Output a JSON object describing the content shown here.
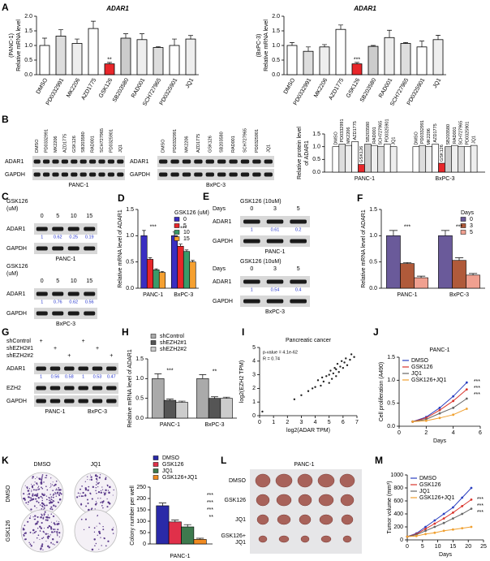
{
  "chart_data": [
    {
      "label": "A",
      "type": "bar",
      "title": "ADAR1",
      "y_label": [
        "(PANC-1)",
        "Relative mRNA level"
      ],
      "categories": [
        "DMSO",
        "PD0332991",
        "MK2206",
        "AZD1775",
        "GSK126",
        "SB203580",
        "RAD001",
        "SCH727965",
        "PD0325901",
        "JQ1"
      ],
      "values": [
        1.0,
        1.32,
        1.07,
        1.58,
        0.37,
        1.25,
        1.2,
        0.93,
        1.0,
        1.22
      ],
      "errors": [
        0.25,
        0.22,
        0.15,
        0.25,
        0.05,
        0.15,
        0.2,
        0.03,
        0.22,
        0.12
      ],
      "colors": [
        "#ffffff",
        "#dddddd",
        "#eeeeee",
        "#ffffff",
        "#e8262a",
        "#cccccc",
        "#eeeeee",
        "#dddddd",
        "#ffffff",
        "#eeeeee"
      ],
      "ylim": [
        0,
        2
      ],
      "yticks": [
        {
          "value": 0,
          "label": "0.0"
        },
        0.5,
        {
          "value": 1,
          "label": "1.0"
        },
        1.5,
        {
          "value": 2,
          "label": "2.0"
        }
      ],
      "annotations": [
        {
          "text": "**",
          "category": "GSK126"
        }
      ]
    },
    {
      "type": "bar",
      "title": "ADAR1",
      "y_label": [
        "(BxPC-3)",
        "Relative mRNA level"
      ],
      "categories": [
        "DMSO",
        "PD0332991",
        "MK2206",
        "AZD1775",
        "GSK126",
        "SB203580",
        "RAD001",
        "SCH727965",
        "PD0325901",
        "JQ1"
      ],
      "values": [
        1.0,
        0.8,
        0.95,
        1.55,
        0.37,
        0.97,
        1.27,
        1.07,
        0.95,
        1.2
      ],
      "errors": [
        0.1,
        0.15,
        0.08,
        0.15,
        0.05,
        0.03,
        0.25,
        0.03,
        0.2,
        0.15
      ],
      "colors": [
        "#ffffff",
        "#dddddd",
        "#eeeeee",
        "#ffffff",
        "#e8262a",
        "#cccccc",
        "#eeeeee",
        "#dddddd",
        "#ffffff",
        "#eeeeee"
      ],
      "ylim": [
        0,
        2
      ],
      "yticks": [
        {
          "value": 0,
          "label": "0.0"
        },
        0.5,
        {
          "value": 1,
          "label": "1.0"
        },
        1.5,
        {
          "value": 2,
          "label": "2.0"
        }
      ],
      "annotations": [
        {
          "text": "***",
          "category": "GSK126"
        }
      ]
    },
    {
      "type": "grouped_bar",
      "y_label": [
        "Relative protein level",
        "of ADAR1"
      ],
      "categories": [
        "PANC-1",
        "BxPC-3"
      ],
      "series_names_on_bars": true,
      "series": [
        {
          "name": "DMSO",
          "color": "#ffffff",
          "values": [
            1.0,
            1.0
          ]
        },
        {
          "name": "PD0332991",
          "color": "#dddddd",
          "values": [
            1.1,
            1.05
          ]
        },
        {
          "name": "MK2206",
          "color": "#eeeeee",
          "values": [
            1.05,
            1.0
          ]
        },
        {
          "name": "AZD1775",
          "color": "#ffffff",
          "values": [
            1.2,
            1.1
          ]
        },
        {
          "name": "GSK126",
          "color": "#e8262a",
          "values": [
            0.3,
            0.35
          ]
        },
        {
          "name": "SB203580",
          "color": "#cccccc",
          "values": [
            1.1,
            1.0
          ]
        },
        {
          "name": "RAD001",
          "color": "#eeeeee",
          "values": [
            1.05,
            1.05
          ]
        },
        {
          "name": "SCH727965",
          "color": "#dddddd",
          "values": [
            1.0,
            1.0
          ]
        },
        {
          "name": "PD0325901",
          "color": "#ffffff",
          "values": [
            1.1,
            1.0
          ]
        },
        {
          "name": "JQ1",
          "color": "#eeeeee",
          "values": [
            1.0,
            1.05
          ]
        }
      ],
      "ylim": [
        0,
        1.5
      ],
      "yticks": [
        {
          "value": 0,
          "label": "0.0"
        },
        0.5,
        {
          "value": 1,
          "label": "1.0"
        },
        1.5
      ]
    },
    {
      "label": "D",
      "type": "grouped_bar",
      "y_label": [
        "Relative mRNA level of ADAR1"
      ],
      "categories": [
        "PANC-1",
        "BxPC-3"
      ],
      "legend": "upper right",
      "legend_title": "GSK126 (uM)",
      "series": [
        {
          "name": "0",
          "color": "#3a2ec2",
          "values": [
            1.0,
            1.0
          ],
          "errors": [
            0.1,
            0.07
          ]
        },
        {
          "name": "5",
          "color": "#e8262a",
          "values": [
            0.55,
            0.8
          ],
          "errors": [
            0.03,
            0.04
          ]
        },
        {
          "name": "10",
          "color": "#3a9a6a",
          "values": [
            0.35,
            0.7
          ],
          "errors": [
            0.02,
            0.03
          ]
        },
        {
          "name": "15",
          "color": "#f5a030",
          "values": [
            0.3,
            0.5
          ],
          "errors": [
            0.02,
            0.03
          ]
        }
      ],
      "ylim": [
        0,
        1.5
      ],
      "yticks": [
        {
          "value": 0,
          "label": "0.0"
        },
        0.5,
        {
          "value": 1,
          "label": "1.0"
        },
        1.5
      ],
      "annotations": [
        {
          "text": "***",
          "category": "PANC-1"
        },
        {
          "text": "***",
          "category": "BxPC-3"
        }
      ]
    },
    {
      "label": "F",
      "type": "grouped_bar",
      "y_label": [
        "Relative mRNA level of ADAR1"
      ],
      "categories": [
        "PANC-1",
        "BxPC-3"
      ],
      "legend": "upper right",
      "legend_title": "Days",
      "series": [
        {
          "name": "0",
          "color": "#6a5a9a",
          "values": [
            1.0,
            1.0
          ],
          "errors": [
            0.1,
            0.1
          ]
        },
        {
          "name": "3",
          "color": "#b05a3a",
          "values": [
            0.47,
            0.53
          ],
          "errors": [
            0.02,
            0.05
          ]
        },
        {
          "name": "5",
          "color": "#f0a090",
          "values": [
            0.2,
            0.25
          ],
          "errors": [
            0.03,
            0.03
          ]
        }
      ],
      "ylim": [
        0,
        1.5
      ],
      "yticks": [
        {
          "value": 0,
          "label": "0.0"
        },
        0.5,
        {
          "value": 1,
          "label": "1.0"
        },
        1.5
      ],
      "annotations": [
        {
          "text": "***",
          "category": "PANC-1"
        },
        {
          "text": "***",
          "category": "BxPC-3"
        }
      ]
    },
    {
      "label": "H",
      "type": "grouped_bar",
      "y_label": [
        "Relative mRNA level of ADAR1"
      ],
      "categories": [
        "PANC-1",
        "BxPC-3"
      ],
      "legend": "above",
      "series": [
        {
          "name": "shControl",
          "color": "#aaaaaa",
          "values": [
            1.0,
            1.0
          ],
          "errors": [
            0.12,
            0.1
          ]
        },
        {
          "name": "shEZH2#1",
          "color": "#555555",
          "values": [
            0.45,
            0.5
          ],
          "errors": [
            0.03,
            0.04
          ]
        },
        {
          "name": "shEZH2#2",
          "color": "#cccccc",
          "values": [
            0.4,
            0.5
          ],
          "errors": [
            0.03,
            0.03
          ]
        }
      ],
      "ylim": [
        0,
        1.5
      ],
      "yticks": [
        {
          "value": 0,
          "label": "0.0"
        },
        0.5,
        {
          "value": 1,
          "label": "1.0"
        },
        1.5
      ],
      "annotations": [
        {
          "text": "***",
          "category": "PANC-1"
        },
        {
          "text": "**",
          "category": "BxPC-3"
        }
      ]
    },
    {
      "label": "I",
      "type": "scatter",
      "title": "Pancreatic cancer",
      "x_label": "log2(ADAR TPM)",
      "y_label": [
        "log2(EZH2 TPM)"
      ],
      "annotations": [
        {
          "text": "p-value = 4.1e-62"
        },
        {
          "text": "R = 0.74"
        }
      ],
      "x": [
        2.5,
        3.0,
        3.5,
        3.8,
        4.0,
        4.2,
        4.4,
        4.5,
        4.6,
        4.8,
        5.0,
        5.0,
        5.1,
        5.2,
        5.3,
        5.4,
        5.5,
        5.5,
        5.6,
        5.7,
        5.8,
        5.9,
        6.0,
        6.1,
        6.2,
        6.3,
        6.5,
        6.6,
        6.8,
        0.2
      ],
      "values": [
        1.2,
        1.5,
        1.8,
        2.0,
        2.1,
        2.6,
        2.2,
        2.8,
        2.5,
        2.9,
        3.0,
        2.4,
        3.3,
        2.7,
        3.1,
        3.5,
        3.4,
        2.9,
        3.8,
        3.2,
        3.6,
        4.0,
        3.5,
        3.9,
        4.2,
        3.7,
        4.1,
        4.5,
        4.3,
        0.3
      ],
      "xlim": [
        0,
        7
      ],
      "xticks": [
        0,
        1,
        2,
        3,
        4,
        5,
        6,
        7
      ],
      "ylim": [
        0,
        5
      ],
      "yticks": [
        0,
        1,
        2,
        3,
        4,
        5
      ]
    },
    {
      "label": "J",
      "type": "line",
      "title": "PANC-1",
      "x_label": "Days",
      "y_label": [
        "Cell proliferation (A490)"
      ],
      "legend": "upper left",
      "x": [
        1,
        2,
        3,
        4,
        5
      ],
      "series": [
        {
          "name": "DMSO",
          "color": "#2a3fc0",
          "values": [
            0.1,
            0.2,
            0.4,
            0.65,
            0.95
          ]
        },
        {
          "name": "GSK126",
          "color": "#d9342b",
          "values": [
            0.1,
            0.18,
            0.35,
            0.55,
            0.8
          ]
        },
        {
          "name": "JQ1",
          "color": "#666666",
          "values": [
            0.1,
            0.15,
            0.28,
            0.4,
            0.6
          ]
        },
        {
          "name": "GSK126+JQ1",
          "color": "#f0a030",
          "values": [
            0.1,
            0.12,
            0.18,
            0.25,
            0.38
          ]
        }
      ],
      "xlim": [
        0,
        6
      ],
      "xticks": [
        0,
        2,
        4,
        6
      ],
      "ylim": [
        0,
        1.5
      ],
      "yticks": [
        {
          "value": 0,
          "label": "0.0"
        },
        0.5,
        {
          "value": 1,
          "label": "1.0"
        },
        1.5
      ],
      "annotations": [
        {
          "text": "***"
        },
        {
          "text": "***"
        },
        {
          "text": "***"
        }
      ]
    },
    {
      "type": "grouped_bar",
      "y_label": [
        "Colony number per well"
      ],
      "legend": "above",
      "series": [
        {
          "name": "DMSO",
          "color": "#2a2aa8",
          "values": [
            168
          ],
          "errors": [
            12
          ]
        },
        {
          "name": "GSK126",
          "color": "#e0304a",
          "values": [
            97
          ],
          "errors": [
            8
          ]
        },
        {
          "name": "JQ1",
          "color": "#3e7a4e",
          "values": [
            75
          ],
          "errors": [
            10
          ]
        },
        {
          "name": "GSK126+JQ1",
          "color": "#f08a20",
          "values": [
            20
          ],
          "errors": [
            5
          ]
        }
      ],
      "ylim": [
        0,
        250
      ],
      "yticks": [
        0,
        50,
        100,
        150,
        200,
        250
      ],
      "annotations": [
        {
          "text": "***"
        },
        {
          "text": "***"
        },
        {
          "text": "***"
        },
        {
          "text": "**"
        }
      ]
    },
    {
      "label": "M",
      "type": "line",
      "x_label": "Days",
      "y_label": [
        "Tumor volume (mm³)"
      ],
      "legend": "upper left",
      "x": [
        0,
        3,
        6,
        9,
        12,
        15,
        18,
        21
      ],
      "series": [
        {
          "name": "DMSO",
          "color": "#2a3fc0",
          "values": [
            50,
            100,
            200,
            300,
            400,
            500,
            650,
            800
          ]
        },
        {
          "name": "GSK126",
          "color": "#d9342b",
          "values": [
            50,
            90,
            170,
            250,
            330,
            420,
            520,
            620
          ]
        },
        {
          "name": "JQ1",
          "color": "#666666",
          "values": [
            50,
            80,
            140,
            200,
            260,
            330,
            400,
            480
          ]
        },
        {
          "name": "GSK126+JQ1",
          "color": "#f0a030",
          "values": [
            50,
            60,
            90,
            110,
            140,
            160,
            180,
            200
          ]
        }
      ],
      "xlim": [
        0,
        25
      ],
      "xticks": [
        0,
        5,
        10,
        15,
        20,
        25
      ],
      "ylim": [
        0,
        1000
      ],
      "yticks": [
        0,
        200,
        400,
        600,
        800,
        1000
      ],
      "annotations": [
        {
          "text": "***"
        },
        {
          "text": "***"
        },
        {
          "text": "***"
        }
      ]
    }
  ],
  "blots": [
    {
      "label": "B",
      "lanes": [
        "DMSO",
        "PD0332991",
        "MK2206",
        "AZD1775",
        "GSK126",
        "SB203580",
        "RAD001",
        "SCH727965",
        "PD0325901",
        "JQ1"
      ],
      "rows": [
        "ADAR1",
        "GAPDH"
      ],
      "cell": "PANC-1"
    },
    {
      "lanes": [
        "DMSO",
        "PD0332991",
        "MK2206",
        "AZD1775",
        "GSK126",
        "SB203580",
        "RAD001",
        "SCH727965",
        "PD0325901",
        "JQ1"
      ],
      "rows": [
        "ADAR1",
        "GAPDH"
      ],
      "cell": "BxPC-3"
    },
    {
      "label": "C",
      "header": [
        "GSK126",
        "(uM)"
      ],
      "lanes": [
        "0",
        "5",
        "10",
        "15"
      ],
      "rows": [
        "ADAR1",
        "GAPDH"
      ],
      "quant": [
        1,
        0.62,
        0.25,
        0.19
      ],
      "cell": "PANC-1"
    },
    {
      "header": [
        "GSK126",
        "(uM)"
      ],
      "lanes": [
        "0",
        "5",
        "10",
        "15"
      ],
      "rows": [
        "ADAR1",
        "GAPDH"
      ],
      "quant": [
        1,
        0.76,
        0.62,
        0.56
      ],
      "cell": "BxPC-3"
    },
    {
      "label": "E",
      "header": [
        "GSK126 (10uM)"
      ],
      "lane_title": "Days",
      "lanes": [
        "0",
        "3",
        "5"
      ],
      "rows": [
        "ADAR1",
        "GAPDH"
      ],
      "quant": [
        1,
        0.61,
        0.2
      ],
      "cell": "PANC-1"
    },
    {
      "header": [
        "GSK126 (10uM)"
      ],
      "lane_title": "Days",
      "lanes": [
        "0",
        "3",
        "5"
      ],
      "rows": [
        "ADAR1",
        "GAPDH"
      ],
      "quant": [
        1,
        0.54,
        0.4
      ],
      "cell": "BxPC-3"
    },
    {
      "label": "G",
      "conditions": [
        "shControl",
        "shEZH2#1",
        "shEZH2#2"
      ],
      "plus": "+",
      "rows": [
        "ADAR1",
        "EZH2",
        "GAPDH"
      ],
      "quant": [
        1,
        0.56,
        0.58,
        1,
        0.53,
        0.47
      ],
      "cells": [
        "PANC-1",
        "BxPC-3"
      ]
    }
  ],
  "colony_images": {
    "label": "K",
    "columns": [
      "DMSO",
      "JQ1"
    ],
    "rows": [
      "DMSO",
      "GSK126"
    ],
    "cell": "PANC-1"
  },
  "tumor_image": {
    "label": "L",
    "title": "PANC-1",
    "rows": [
      "DMSO",
      "GSK126",
      "JQ1",
      [
        "GSK126+",
        "JQ1"
      ]
    ]
  }
}
